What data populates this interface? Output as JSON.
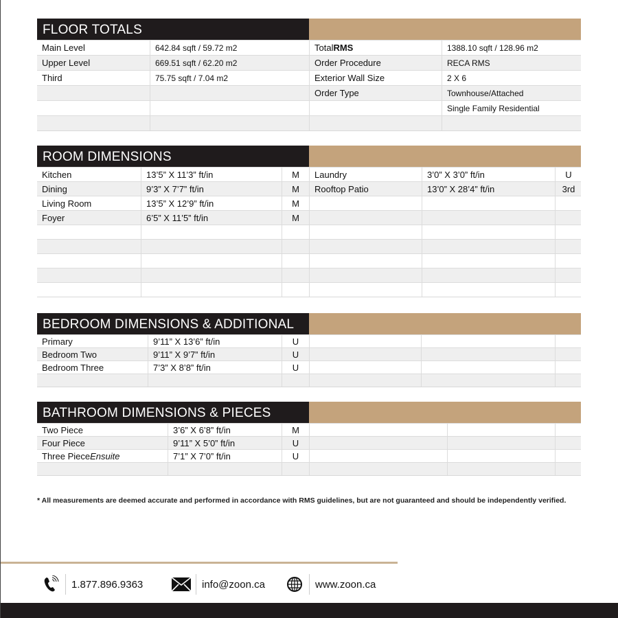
{
  "sections": [
    {
      "id": "floor-totals",
      "title": "FLOOR TOTALS",
      "left": [
        [
          "Main Level",
          "642.84 sqft / 59.72 m2"
        ],
        [
          "Upper Level",
          "669.51 sqft / 62.20 m2"
        ],
        [
          "Third",
          "75.75 sqft / 7.04 m2"
        ],
        [
          "",
          ""
        ],
        [
          "",
          ""
        ],
        [
          "",
          ""
        ]
      ],
      "right": [
        [
          "Total RMS",
          "1388.10 sqft / 128.96 m2"
        ],
        [
          "Order Procedure",
          "RECA RMS"
        ],
        [
          "Exterior Wall Size",
          "2 X 6"
        ],
        [
          "Order Type",
          "Townhouse/Attached"
        ],
        [
          "",
          "Single Family Residential"
        ],
        [
          "",
          ""
        ]
      ]
    },
    {
      "id": "room-dimensions",
      "title": "ROOM DIMENSIONS",
      "left": [
        [
          "Kitchen",
          "13’5” X 11’3” ft/in",
          "M"
        ],
        [
          "Dining",
          "9’3” X 7’7” ft/in",
          "M"
        ],
        [
          "Living Room",
          "13’5” X 12’9” ft/in",
          "M"
        ],
        [
          "Foyer",
          "6’5” X 11’5” ft/in",
          "M"
        ],
        [
          "",
          "",
          ""
        ],
        [
          "",
          "",
          ""
        ],
        [
          "",
          "",
          ""
        ],
        [
          "",
          "",
          ""
        ],
        [
          "",
          "",
          ""
        ]
      ],
      "right": [
        [
          "Laundry",
          "3’0” X 3’0” ft/in",
          "U"
        ],
        [
          "Rooftop Patio",
          "13’0” X 28’4” ft/in",
          "3rd"
        ],
        [
          "",
          "",
          ""
        ],
        [
          "",
          "",
          ""
        ],
        [
          "",
          "",
          ""
        ],
        [
          "",
          "",
          ""
        ],
        [
          "",
          "",
          ""
        ],
        [
          "",
          "",
          ""
        ],
        [
          "",
          "",
          ""
        ]
      ]
    },
    {
      "id": "bedroom-dimensions",
      "title": "BEDROOM DIMENSIONS & ADDITIONAL",
      "left": [
        [
          "Primary",
          "9’11” X 13’6” ft/in",
          "U"
        ],
        [
          "Bedroom Two",
          "9’11” X 9’7” ft/in",
          "U"
        ],
        [
          "Bedroom Three",
          "7’3” X 8’8” ft/in",
          "U"
        ],
        [
          "",
          "",
          ""
        ]
      ],
      "right": [
        [
          "",
          "",
          ""
        ],
        [
          "",
          "",
          ""
        ],
        [
          "",
          "",
          ""
        ],
        [
          "",
          "",
          ""
        ]
      ]
    },
    {
      "id": "bathroom-dimensions",
      "title": "BATHROOM DIMENSIONS & PIECES",
      "left": [
        [
          "Two Piece",
          "3’6” X 6’8” ft/in",
          "M"
        ],
        [
          "Four Piece",
          "9’11” X 5’0” ft/in",
          "U"
        ],
        [
          "Three Piece Ensuite",
          "7’1” X 7’0” ft/in",
          "U"
        ],
        [
          "",
          "",
          ""
        ]
      ],
      "right": [
        [
          "",
          "",
          ""
        ],
        [
          "",
          "",
          ""
        ],
        [
          "",
          "",
          ""
        ],
        [
          "",
          "",
          ""
        ]
      ]
    }
  ],
  "footnote": "* All measurements are deemed accurate and performed in accordance with RMS guidelines, but are not guaranteed and should be independently verified.",
  "contacts": {
    "phone": {
      "icon": "phone-icon",
      "text": "1.877.896.9363"
    },
    "email": {
      "icon": "envelope-icon",
      "text": "info@zoon.ca"
    },
    "web": {
      "icon": "globe-icon",
      "text": "www.zoon.ca"
    }
  },
  "colors": {
    "header_dark": "#1f1b1c",
    "accent_gold": "#c4a37c",
    "row_alt": "#efefef"
  }
}
